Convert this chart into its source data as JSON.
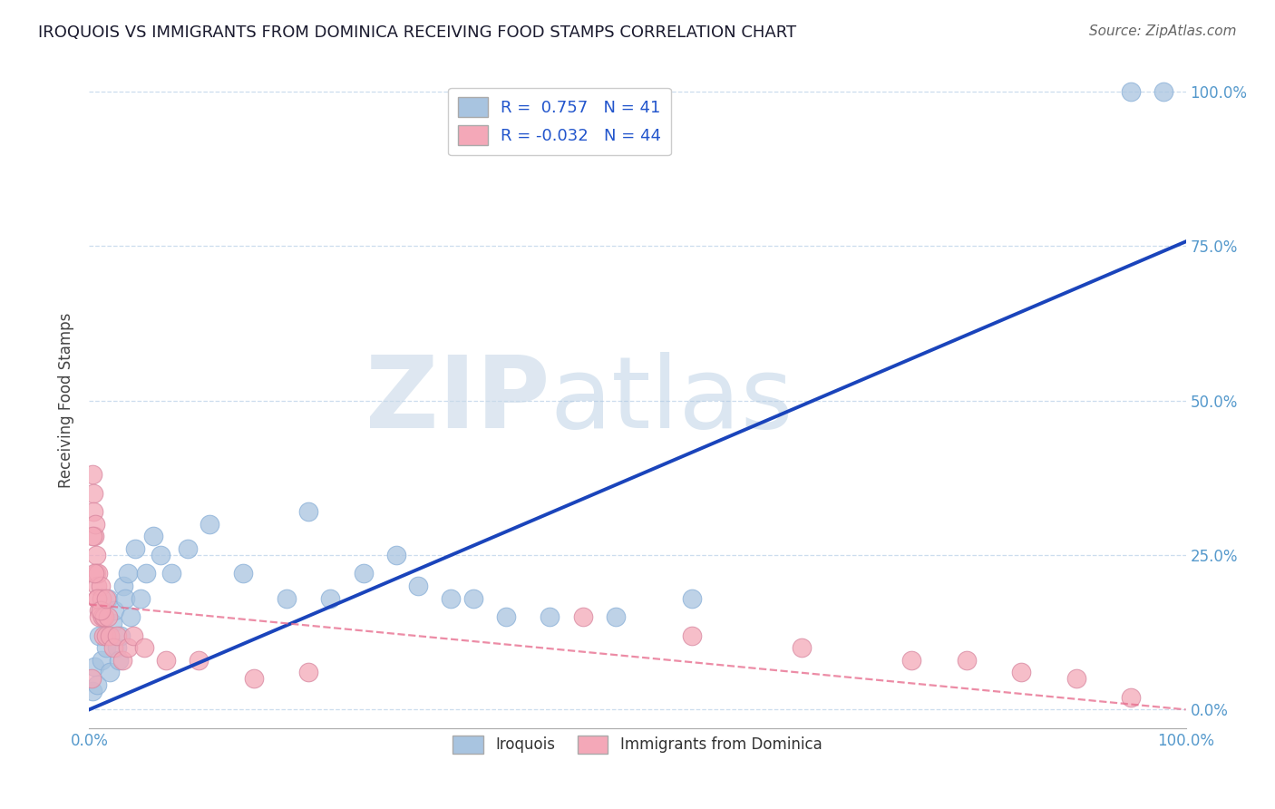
{
  "title": "IROQUOIS VS IMMIGRANTS FROM DOMINICA RECEIVING FOOD STAMPS CORRELATION CHART",
  "source": "Source: ZipAtlas.com",
  "ylabel": "Receiving Food Stamps",
  "xlabel": "",
  "xlim": [
    0,
    100
  ],
  "ylim": [
    -3,
    103
  ],
  "xtick_labels": [
    "0.0%",
    "",
    "",
    "",
    "100.0%"
  ],
  "ytick_labels": [
    "0.0%",
    "25.0%",
    "50.0%",
    "75.0%",
    "100.0%"
  ],
  "xtick_vals": [
    0,
    25,
    50,
    75,
    100
  ],
  "ytick_vals": [
    0,
    25,
    50,
    75,
    100
  ],
  "iroquois_color": "#a8c4e0",
  "dominica_color": "#f4a8b8",
  "iroquois_line_color": "#1a44bb",
  "dominica_line_color": "#e87090",
  "legend_iroquois_R": "0.757",
  "legend_iroquois_N": "41",
  "legend_dominica_R": "-0.032",
  "legend_dominica_N": "44",
  "iroquois_x": [
    0.3,
    0.5,
    0.7,
    0.9,
    1.1,
    1.3,
    1.5,
    1.7,
    1.9,
    2.1,
    2.3,
    2.5,
    2.7,
    2.9,
    3.1,
    3.3,
    3.5,
    3.8,
    4.2,
    4.7,
    5.2,
    5.8,
    6.5,
    7.5,
    9.0,
    11.0,
    14.0,
    18.0,
    20.0,
    22.0,
    25.0,
    28.0,
    30.0,
    33.0,
    35.0,
    38.0,
    42.0,
    48.0,
    55.0,
    95.0,
    98.0
  ],
  "iroquois_y": [
    3.0,
    7.0,
    4.0,
    12.0,
    8.0,
    15.0,
    10.0,
    18.0,
    6.0,
    14.0,
    16.0,
    10.0,
    8.0,
    12.0,
    20.0,
    18.0,
    22.0,
    15.0,
    26.0,
    18.0,
    22.0,
    28.0,
    25.0,
    22.0,
    26.0,
    30.0,
    22.0,
    18.0,
    32.0,
    18.0,
    22.0,
    25.0,
    20.0,
    18.0,
    18.0,
    15.0,
    15.0,
    15.0,
    18.0,
    100.0,
    100.0
  ],
  "dominica_x": [
    0.2,
    0.3,
    0.35,
    0.4,
    0.5,
    0.55,
    0.6,
    0.65,
    0.7,
    0.75,
    0.8,
    0.85,
    0.9,
    1.0,
    1.1,
    1.2,
    1.3,
    1.4,
    1.5,
    1.7,
    1.9,
    2.2,
    2.5,
    3.0,
    3.5,
    4.0,
    5.0,
    7.0,
    10.0,
    15.0,
    20.0,
    45.0,
    55.0,
    65.0,
    75.0,
    80.0,
    85.0,
    90.0,
    95.0,
    0.3,
    0.5,
    0.7,
    1.0,
    1.5
  ],
  "dominica_y": [
    5.0,
    38.0,
    35.0,
    32.0,
    28.0,
    30.0,
    25.0,
    22.0,
    20.0,
    18.0,
    22.0,
    16.0,
    15.0,
    20.0,
    18.0,
    15.0,
    12.0,
    15.0,
    12.0,
    15.0,
    12.0,
    10.0,
    12.0,
    8.0,
    10.0,
    12.0,
    10.0,
    8.0,
    8.0,
    5.0,
    6.0,
    15.0,
    12.0,
    10.0,
    8.0,
    8.0,
    6.0,
    5.0,
    2.0,
    28.0,
    22.0,
    18.0,
    16.0,
    18.0
  ],
  "watermark_zip": "ZIP",
  "watermark_atlas": "atlas",
  "background_color": "#ffffff",
  "grid_color": "#ccddee",
  "title_color": "#1a1a2e",
  "axis_label_color": "#444444",
  "tick_color": "#5599cc"
}
